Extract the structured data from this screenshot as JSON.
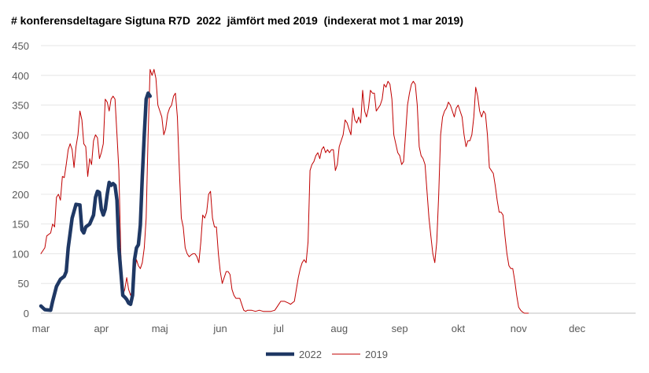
{
  "chart_data": {
    "type": "line",
    "title": "# konferensdeltagare Sigtuna R7D  2022  jämfört med 2019  (indexerat mot 1 mar 2019)",
    "xlabel": "",
    "ylabel": "",
    "ylim": [
      0,
      450
    ],
    "yticks": [
      0,
      50,
      100,
      150,
      200,
      250,
      300,
      350,
      400,
      450
    ],
    "xlim": [
      0,
      305
    ],
    "month_ticks": [
      {
        "label": "mar",
        "day": 0
      },
      {
        "label": "apr",
        "day": 31
      },
      {
        "label": "maj",
        "day": 61
      },
      {
        "label": "jun",
        "day": 92
      },
      {
        "label": "jul",
        "day": 122
      },
      {
        "label": "aug",
        "day": 153
      },
      {
        "label": "sep",
        "day": 184
      },
      {
        "label": "okt",
        "day": 214
      },
      {
        "label": "nov",
        "day": 245
      },
      {
        "label": "dec",
        "day": 275
      }
    ],
    "grid": true,
    "legend_position": "bottom",
    "series": [
      {
        "name": "2022",
        "color": "#1f3864",
        "points": [
          [
            0,
            12
          ],
          [
            2,
            6
          ],
          [
            5,
            5
          ],
          [
            6,
            20
          ],
          [
            8,
            45
          ],
          [
            10,
            57
          ],
          [
            12,
            62
          ],
          [
            13,
            70
          ],
          [
            14,
            110
          ],
          [
            16,
            160
          ],
          [
            18,
            183
          ],
          [
            20,
            182
          ],
          [
            21,
            140
          ],
          [
            22,
            135
          ],
          [
            23,
            145
          ],
          [
            25,
            150
          ],
          [
            27,
            165
          ],
          [
            28,
            195
          ],
          [
            29,
            205
          ],
          [
            30,
            203
          ],
          [
            31,
            175
          ],
          [
            32,
            165
          ],
          [
            33,
            175
          ],
          [
            34,
            200
          ],
          [
            35,
            220
          ],
          [
            36,
            215
          ],
          [
            37,
            218
          ],
          [
            38,
            215
          ],
          [
            39,
            190
          ],
          [
            40,
            110
          ],
          [
            42,
            30
          ],
          [
            43,
            27
          ],
          [
            44,
            23
          ],
          [
            45,
            17
          ],
          [
            46,
            15
          ],
          [
            47,
            30
          ],
          [
            48,
            90
          ],
          [
            49,
            110
          ],
          [
            50,
            115
          ],
          [
            51,
            148
          ],
          [
            52,
            230
          ],
          [
            53,
            300
          ],
          [
            54,
            360
          ],
          [
            55,
            370
          ],
          [
            56,
            365
          ]
        ]
      },
      {
        "name": "2019",
        "color": "#c00000",
        "points": [
          [
            0,
            100
          ],
          [
            2,
            110
          ],
          [
            3,
            130
          ],
          [
            5,
            135
          ],
          [
            6,
            150
          ],
          [
            7,
            145
          ],
          [
            8,
            195
          ],
          [
            9,
            200
          ],
          [
            10,
            190
          ],
          [
            11,
            230
          ],
          [
            12,
            228
          ],
          [
            13,
            250
          ],
          [
            14,
            275
          ],
          [
            15,
            285
          ],
          [
            16,
            275
          ],
          [
            17,
            245
          ],
          [
            18,
            280
          ],
          [
            19,
            300
          ],
          [
            20,
            340
          ],
          [
            21,
            325
          ],
          [
            22,
            285
          ],
          [
            23,
            280
          ],
          [
            24,
            230
          ],
          [
            25,
            260
          ],
          [
            26,
            250
          ],
          [
            27,
            290
          ],
          [
            28,
            300
          ],
          [
            29,
            295
          ],
          [
            30,
            260
          ],
          [
            31,
            270
          ],
          [
            32,
            285
          ],
          [
            33,
            360
          ],
          [
            34,
            355
          ],
          [
            35,
            340
          ],
          [
            36,
            360
          ],
          [
            37,
            365
          ],
          [
            38,
            360
          ],
          [
            39,
            300
          ],
          [
            40,
            240
          ],
          [
            41,
            100
          ],
          [
            42,
            30
          ],
          [
            43,
            40
          ],
          [
            44,
            60
          ],
          [
            45,
            40
          ],
          [
            46,
            30
          ],
          [
            47,
            40
          ],
          [
            48,
            70
          ],
          [
            49,
            90
          ],
          [
            50,
            80
          ],
          [
            51,
            75
          ],
          [
            52,
            85
          ],
          [
            53,
            110
          ],
          [
            54,
            160
          ],
          [
            55,
            300
          ],
          [
            56,
            410
          ],
          [
            57,
            400
          ],
          [
            58,
            410
          ],
          [
            59,
            395
          ],
          [
            60,
            350
          ],
          [
            61,
            340
          ],
          [
            62,
            330
          ],
          [
            63,
            300
          ],
          [
            64,
            310
          ],
          [
            65,
            335
          ],
          [
            66,
            345
          ],
          [
            67,
            350
          ],
          [
            68,
            365
          ],
          [
            69,
            370
          ],
          [
            70,
            330
          ],
          [
            71,
            240
          ],
          [
            72,
            160
          ],
          [
            73,
            145
          ],
          [
            74,
            110
          ],
          [
            75,
            100
          ],
          [
            76,
            95
          ],
          [
            77,
            98
          ],
          [
            78,
            100
          ],
          [
            79,
            100
          ],
          [
            80,
            95
          ],
          [
            81,
            85
          ],
          [
            82,
            120
          ],
          [
            83,
            165
          ],
          [
            84,
            160
          ],
          [
            85,
            170
          ],
          [
            86,
            200
          ],
          [
            87,
            205
          ],
          [
            88,
            160
          ],
          [
            89,
            145
          ],
          [
            90,
            145
          ],
          [
            91,
            100
          ],
          [
            92,
            70
          ],
          [
            93,
            50
          ],
          [
            94,
            60
          ],
          [
            95,
            70
          ],
          [
            96,
            70
          ],
          [
            97,
            65
          ],
          [
            98,
            40
          ],
          [
            99,
            30
          ],
          [
            100,
            25
          ],
          [
            102,
            25
          ],
          [
            103,
            15
          ],
          [
            104,
            5
          ],
          [
            105,
            3
          ],
          [
            106,
            5
          ],
          [
            108,
            5
          ],
          [
            110,
            3
          ],
          [
            112,
            5
          ],
          [
            114,
            3
          ],
          [
            116,
            3
          ],
          [
            118,
            3
          ],
          [
            120,
            5
          ],
          [
            122,
            15
          ],
          [
            123,
            20
          ],
          [
            125,
            20
          ],
          [
            127,
            17
          ],
          [
            128,
            15
          ],
          [
            130,
            20
          ],
          [
            131,
            40
          ],
          [
            132,
            60
          ],
          [
            133,
            75
          ],
          [
            134,
            85
          ],
          [
            135,
            90
          ],
          [
            136,
            85
          ],
          [
            137,
            120
          ],
          [
            138,
            240
          ],
          [
            139,
            250
          ],
          [
            140,
            255
          ],
          [
            141,
            265
          ],
          [
            142,
            270
          ],
          [
            143,
            260
          ],
          [
            144,
            275
          ],
          [
            145,
            280
          ],
          [
            146,
            270
          ],
          [
            147,
            275
          ],
          [
            148,
            270
          ],
          [
            149,
            275
          ],
          [
            150,
            275
          ],
          [
            151,
            240
          ],
          [
            152,
            250
          ],
          [
            153,
            280
          ],
          [
            154,
            290
          ],
          [
            155,
            300
          ],
          [
            156,
            325
          ],
          [
            157,
            320
          ],
          [
            158,
            310
          ],
          [
            159,
            300
          ],
          [
            160,
            345
          ],
          [
            161,
            325
          ],
          [
            162,
            320
          ],
          [
            163,
            330
          ],
          [
            164,
            320
          ],
          [
            165,
            375
          ],
          [
            166,
            340
          ],
          [
            167,
            330
          ],
          [
            168,
            345
          ],
          [
            169,
            375
          ],
          [
            170,
            370
          ],
          [
            171,
            370
          ],
          [
            172,
            340
          ],
          [
            173,
            345
          ],
          [
            174,
            350
          ],
          [
            175,
            360
          ],
          [
            176,
            385
          ],
          [
            177,
            380
          ],
          [
            178,
            390
          ],
          [
            179,
            385
          ],
          [
            180,
            360
          ],
          [
            181,
            300
          ],
          [
            182,
            285
          ],
          [
            183,
            270
          ],
          [
            184,
            265
          ],
          [
            185,
            250
          ],
          [
            186,
            255
          ],
          [
            187,
            300
          ],
          [
            188,
            350
          ],
          [
            189,
            370
          ],
          [
            190,
            385
          ],
          [
            191,
            390
          ],
          [
            192,
            385
          ],
          [
            193,
            350
          ],
          [
            194,
            280
          ],
          [
            195,
            265
          ],
          [
            196,
            260
          ],
          [
            197,
            250
          ],
          [
            198,
            205
          ],
          [
            199,
            160
          ],
          [
            200,
            130
          ],
          [
            201,
            100
          ],
          [
            202,
            85
          ],
          [
            203,
            120
          ],
          [
            204,
            200
          ],
          [
            205,
            300
          ],
          [
            206,
            330
          ],
          [
            207,
            340
          ],
          [
            208,
            345
          ],
          [
            209,
            355
          ],
          [
            210,
            350
          ],
          [
            211,
            340
          ],
          [
            212,
            330
          ],
          [
            213,
            345
          ],
          [
            214,
            350
          ],
          [
            215,
            340
          ],
          [
            216,
            330
          ],
          [
            217,
            300
          ],
          [
            218,
            280
          ],
          [
            219,
            290
          ],
          [
            220,
            290
          ],
          [
            221,
            300
          ],
          [
            222,
            330
          ],
          [
            223,
            380
          ],
          [
            224,
            365
          ],
          [
            225,
            340
          ],
          [
            226,
            330
          ],
          [
            227,
            340
          ],
          [
            228,
            335
          ],
          [
            229,
            300
          ],
          [
            230,
            245
          ],
          [
            231,
            240
          ],
          [
            232,
            235
          ],
          [
            233,
            215
          ],
          [
            234,
            190
          ],
          [
            235,
            170
          ],
          [
            236,
            170
          ],
          [
            237,
            165
          ],
          [
            238,
            130
          ],
          [
            239,
            100
          ],
          [
            240,
            80
          ],
          [
            241,
            75
          ],
          [
            242,
            75
          ],
          [
            243,
            55
          ],
          [
            244,
            30
          ],
          [
            245,
            10
          ],
          [
            246,
            5
          ],
          [
            247,
            2
          ],
          [
            248,
            0
          ],
          [
            250,
            0
          ]
        ]
      }
    ]
  }
}
